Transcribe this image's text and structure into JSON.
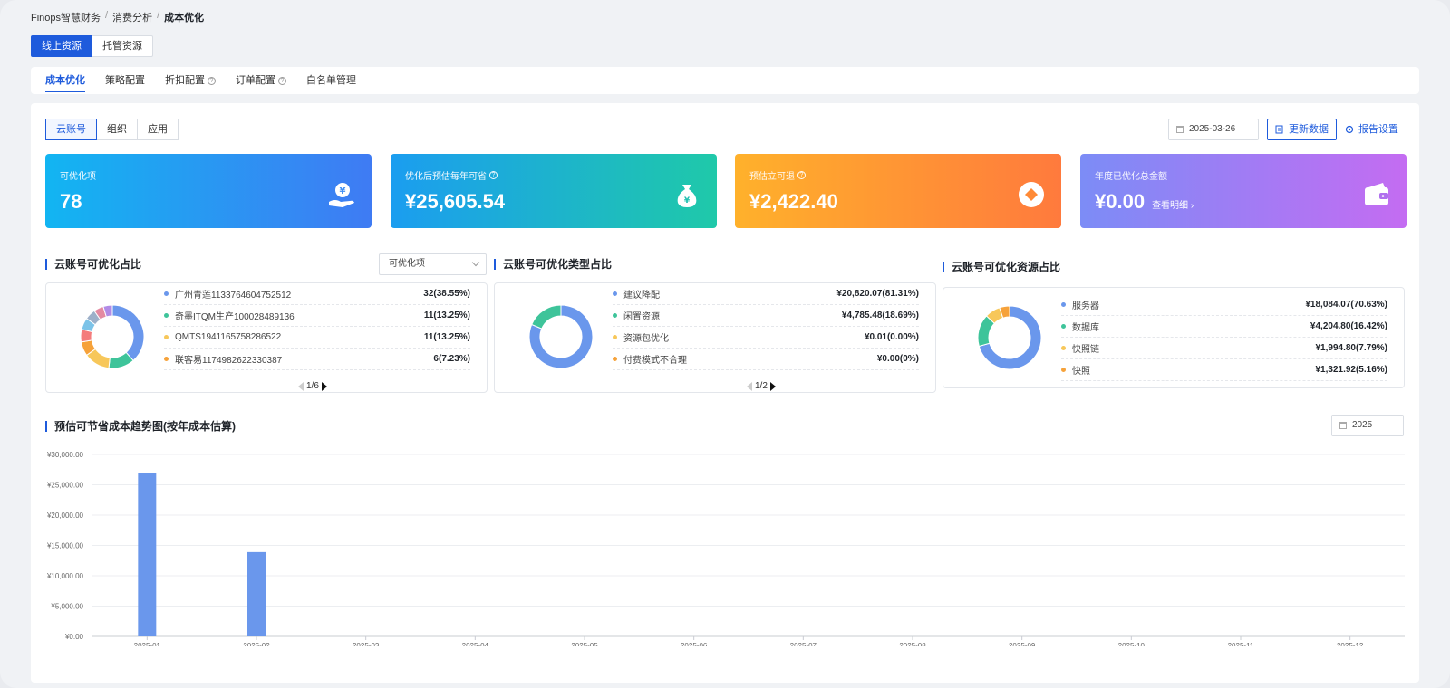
{
  "breadcrumb": [
    "Finops智慧财务",
    "消费分析",
    "成本优化"
  ],
  "resource_tabs": [
    "线上资源",
    "托管资源"
  ],
  "nav_tabs": [
    {
      "label": "成本优化",
      "help": false
    },
    {
      "label": "策略配置",
      "help": false
    },
    {
      "label": "折扣配置",
      "help": true
    },
    {
      "label": "订单配置",
      "help": true
    },
    {
      "label": "白名单管理",
      "help": false
    }
  ],
  "dimension_tabs": [
    "云账号",
    "组织",
    "应用"
  ],
  "date_value": "2025-03-26",
  "update_label": "更新数据",
  "report_label": "报告设置",
  "cards": [
    {
      "label": "可优化项",
      "value": "78",
      "help": false
    },
    {
      "label": "优化后预估每年可省",
      "value": "¥25,605.54",
      "help": true
    },
    {
      "label": "预估立可退",
      "value": "¥2,422.40",
      "help": true
    },
    {
      "label": "年度已优化总金额",
      "value": "¥0.00",
      "help": false,
      "link": "查看明细"
    }
  ],
  "account_share": {
    "title": "云账号可优化占比",
    "select": "可优化项",
    "items": [
      {
        "name": "广州青莲1133764604752512",
        "value": "32(38.55%)",
        "color": "#6a97ec"
      },
      {
        "name": "奇墨ITQM生产100028489136",
        "value": "11(13.25%)",
        "color": "#3ec49a"
      },
      {
        "name": "QMTS1941165758286522",
        "value": "11(13.25%)",
        "color": "#f7c75a"
      },
      {
        "name": "联客易1174982622330387",
        "value": "6(7.23%)",
        "color": "#f6a23a"
      }
    ],
    "donut": [
      38.55,
      13.25,
      13.25,
      7.23,
      6.5,
      6.0,
      5.5,
      5.0,
      4.67
    ],
    "donut_colors": [
      "#6a97ec",
      "#3ec49a",
      "#f7c75a",
      "#f6a23a",
      "#f47c7c",
      "#7cc3e8",
      "#9db0c9",
      "#e48aa2",
      "#b18be6"
    ],
    "pager": "1/6"
  },
  "type_share": {
    "title": "云账号可优化类型占比",
    "items": [
      {
        "name": "建议降配",
        "value": "¥20,820.07(81.31%)",
        "color": "#6a97ec"
      },
      {
        "name": "闲置资源",
        "value": "¥4,785.48(18.69%)",
        "color": "#3ec49a"
      },
      {
        "name": "资源包优化",
        "value": "¥0.01(0.00%)",
        "color": "#f7c75a"
      },
      {
        "name": "付费模式不合理",
        "value": "¥0.00(0%)",
        "color": "#f6a23a"
      }
    ],
    "donut": [
      81.31,
      18.69
    ],
    "donut_colors": [
      "#6a97ec",
      "#3ec49a"
    ],
    "pager": "1/2"
  },
  "resource_share": {
    "title": "云账号可优化资源占比",
    "items": [
      {
        "name": "服务器",
        "value": "¥18,084.07(70.63%)",
        "color": "#6a97ec"
      },
      {
        "name": "数据库",
        "value": "¥4,204.80(16.42%)",
        "color": "#3ec49a"
      },
      {
        "name": "快照链",
        "value": "¥1,994.80(7.79%)",
        "color": "#f7c75a"
      },
      {
        "name": "快照",
        "value": "¥1,321.92(5.16%)",
        "color": "#f6a23a"
      }
    ],
    "donut": [
      70.63,
      16.42,
      7.79,
      5.16
    ],
    "donut_colors": [
      "#6a97ec",
      "#3ec49a",
      "#f7c75a",
      "#f6a23a"
    ]
  },
  "trend_title": "预估可节省成本趋势图(按年成本估算)",
  "year_value": "2025",
  "chart_data": {
    "type": "bar",
    "categories": [
      "2025-01",
      "2025-02",
      "2025-03",
      "2025-04",
      "2025-05",
      "2025-06",
      "2025-07",
      "2025-08",
      "2025-09",
      "2025-10",
      "2025-11",
      "2025-12"
    ],
    "values": [
      27000,
      13900,
      0,
      0,
      0,
      0,
      0,
      0,
      0,
      0,
      0,
      0
    ],
    "ylim": [
      0,
      30000
    ],
    "yticks": [
      "¥0.00",
      "¥5,000.00",
      "¥10,000.00",
      "¥15,000.00",
      "¥20,000.00",
      "¥25,000.00",
      "¥30,000.00"
    ],
    "color": "#6a97ec",
    "grid": true
  }
}
